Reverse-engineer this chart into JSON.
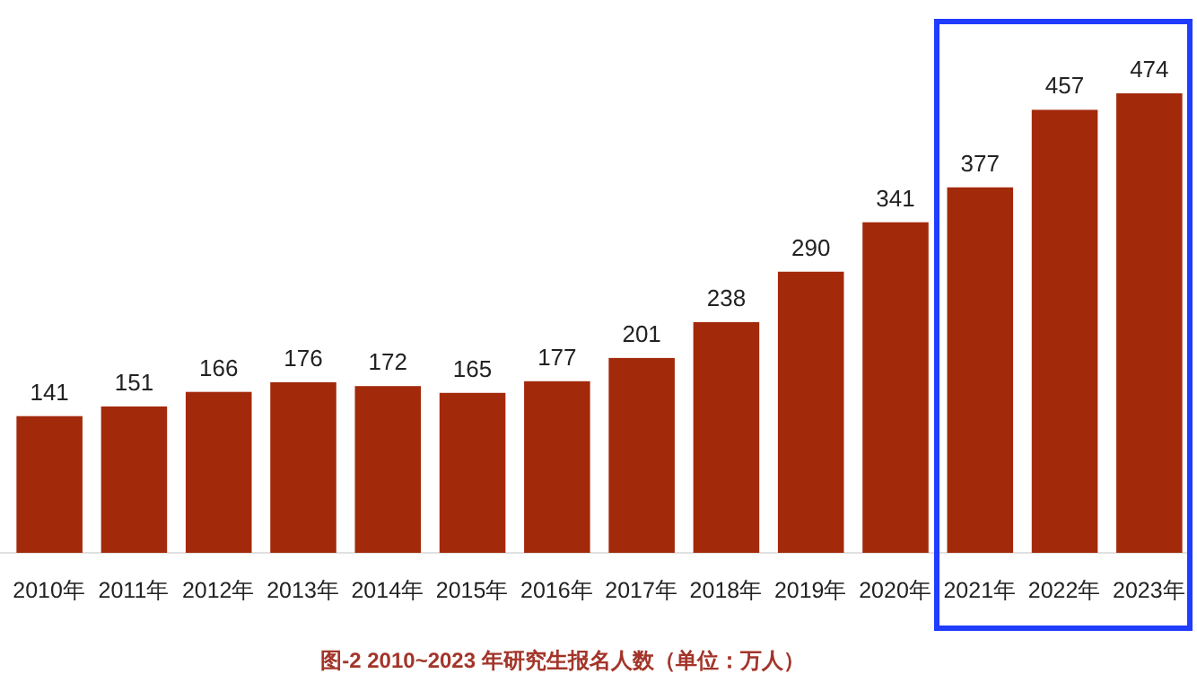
{
  "chart_data": {
    "type": "bar",
    "title": "图-2 2010~2023 年研究生报名人数（单位：万人）",
    "categories": [
      "2010年",
      "2011年",
      "2012年",
      "2013年",
      "2014年",
      "2015年",
      "2016年",
      "2017年",
      "2018年",
      "2019年",
      "2020年",
      "2021年",
      "2022年",
      "2023年"
    ],
    "values": [
      141,
      151,
      166,
      176,
      172,
      165,
      177,
      201,
      238,
      290,
      341,
      377,
      457,
      474
    ],
    "color": "#a3290b",
    "data_labels": true,
    "grid": false
  }
}
